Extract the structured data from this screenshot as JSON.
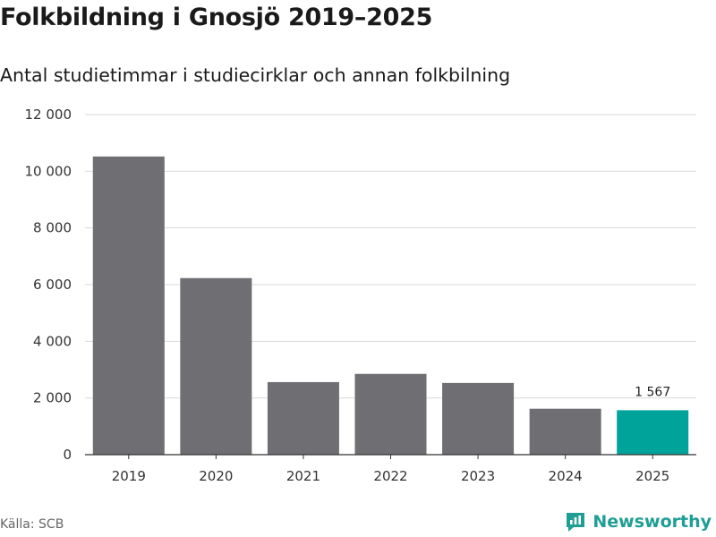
{
  "title": "Folkbildning i Gnosjö 2019–2025",
  "subtitle": "Antal studietimmar i studiecirklar och annan folkbilning",
  "source": "Källa: SCB",
  "brand": {
    "name": "Newsworthy",
    "icon": "newsworthy-logo-icon"
  },
  "colors": {
    "bar": "#6e6e73",
    "highlight": "#00a39a",
    "grid": "#d9d9d9",
    "axis": "#333333",
    "brand": "#1f9e95"
  },
  "chart_data": {
    "type": "bar",
    "categories": [
      "2019",
      "2020",
      "2021",
      "2022",
      "2023",
      "2024",
      "2025"
    ],
    "values": [
      10520,
      6230,
      2560,
      2850,
      2530,
      1620,
      1567
    ],
    "highlight_index": 6,
    "data_labels": [
      {
        "index": 6,
        "text": "1 567"
      }
    ],
    "ylim": [
      0,
      12000
    ],
    "yticks": [
      0,
      2000,
      4000,
      6000,
      8000,
      10000,
      12000
    ],
    "ytick_labels": [
      "0",
      "2 000",
      "4 000",
      "6 000",
      "8 000",
      "10 000",
      "12 000"
    ],
    "grid": true,
    "xlabel": "",
    "ylabel": ""
  }
}
